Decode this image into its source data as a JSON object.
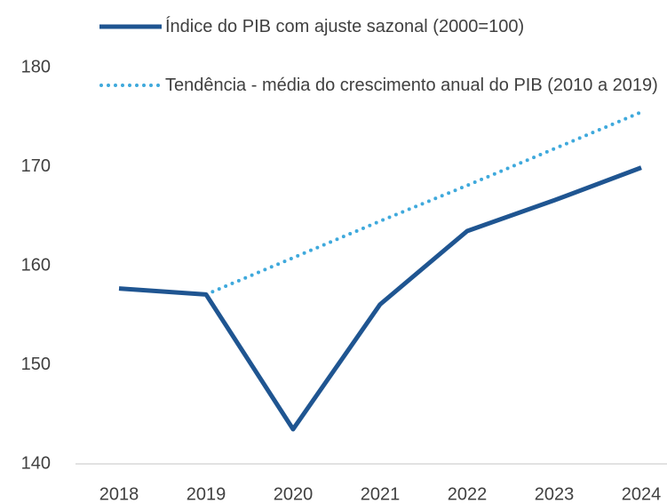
{
  "chart_data": {
    "type": "line",
    "categories": [
      "2018",
      "2019",
      "2020",
      "2021",
      "2022",
      "2023",
      "2024"
    ],
    "series": [
      {
        "name": "Índice do PIB com ajuste sazonal (2000=100)",
        "color": "#1f5591",
        "style": "solid",
        "values": [
          157.7,
          157.1,
          143.5,
          156.1,
          163.5,
          166.6,
          169.9
        ]
      },
      {
        "name": "Tendência - média do crescimento anual do PIB (2010 a 2019)",
        "color": "#3fa9dc",
        "style": "dotted",
        "values": [
          null,
          157.1,
          160.8,
          164.5,
          168.1,
          171.8,
          175.5
        ]
      }
    ],
    "ylim": [
      140,
      180
    ],
    "yticks": [
      140,
      150,
      160,
      170,
      180
    ],
    "grid": false
  }
}
